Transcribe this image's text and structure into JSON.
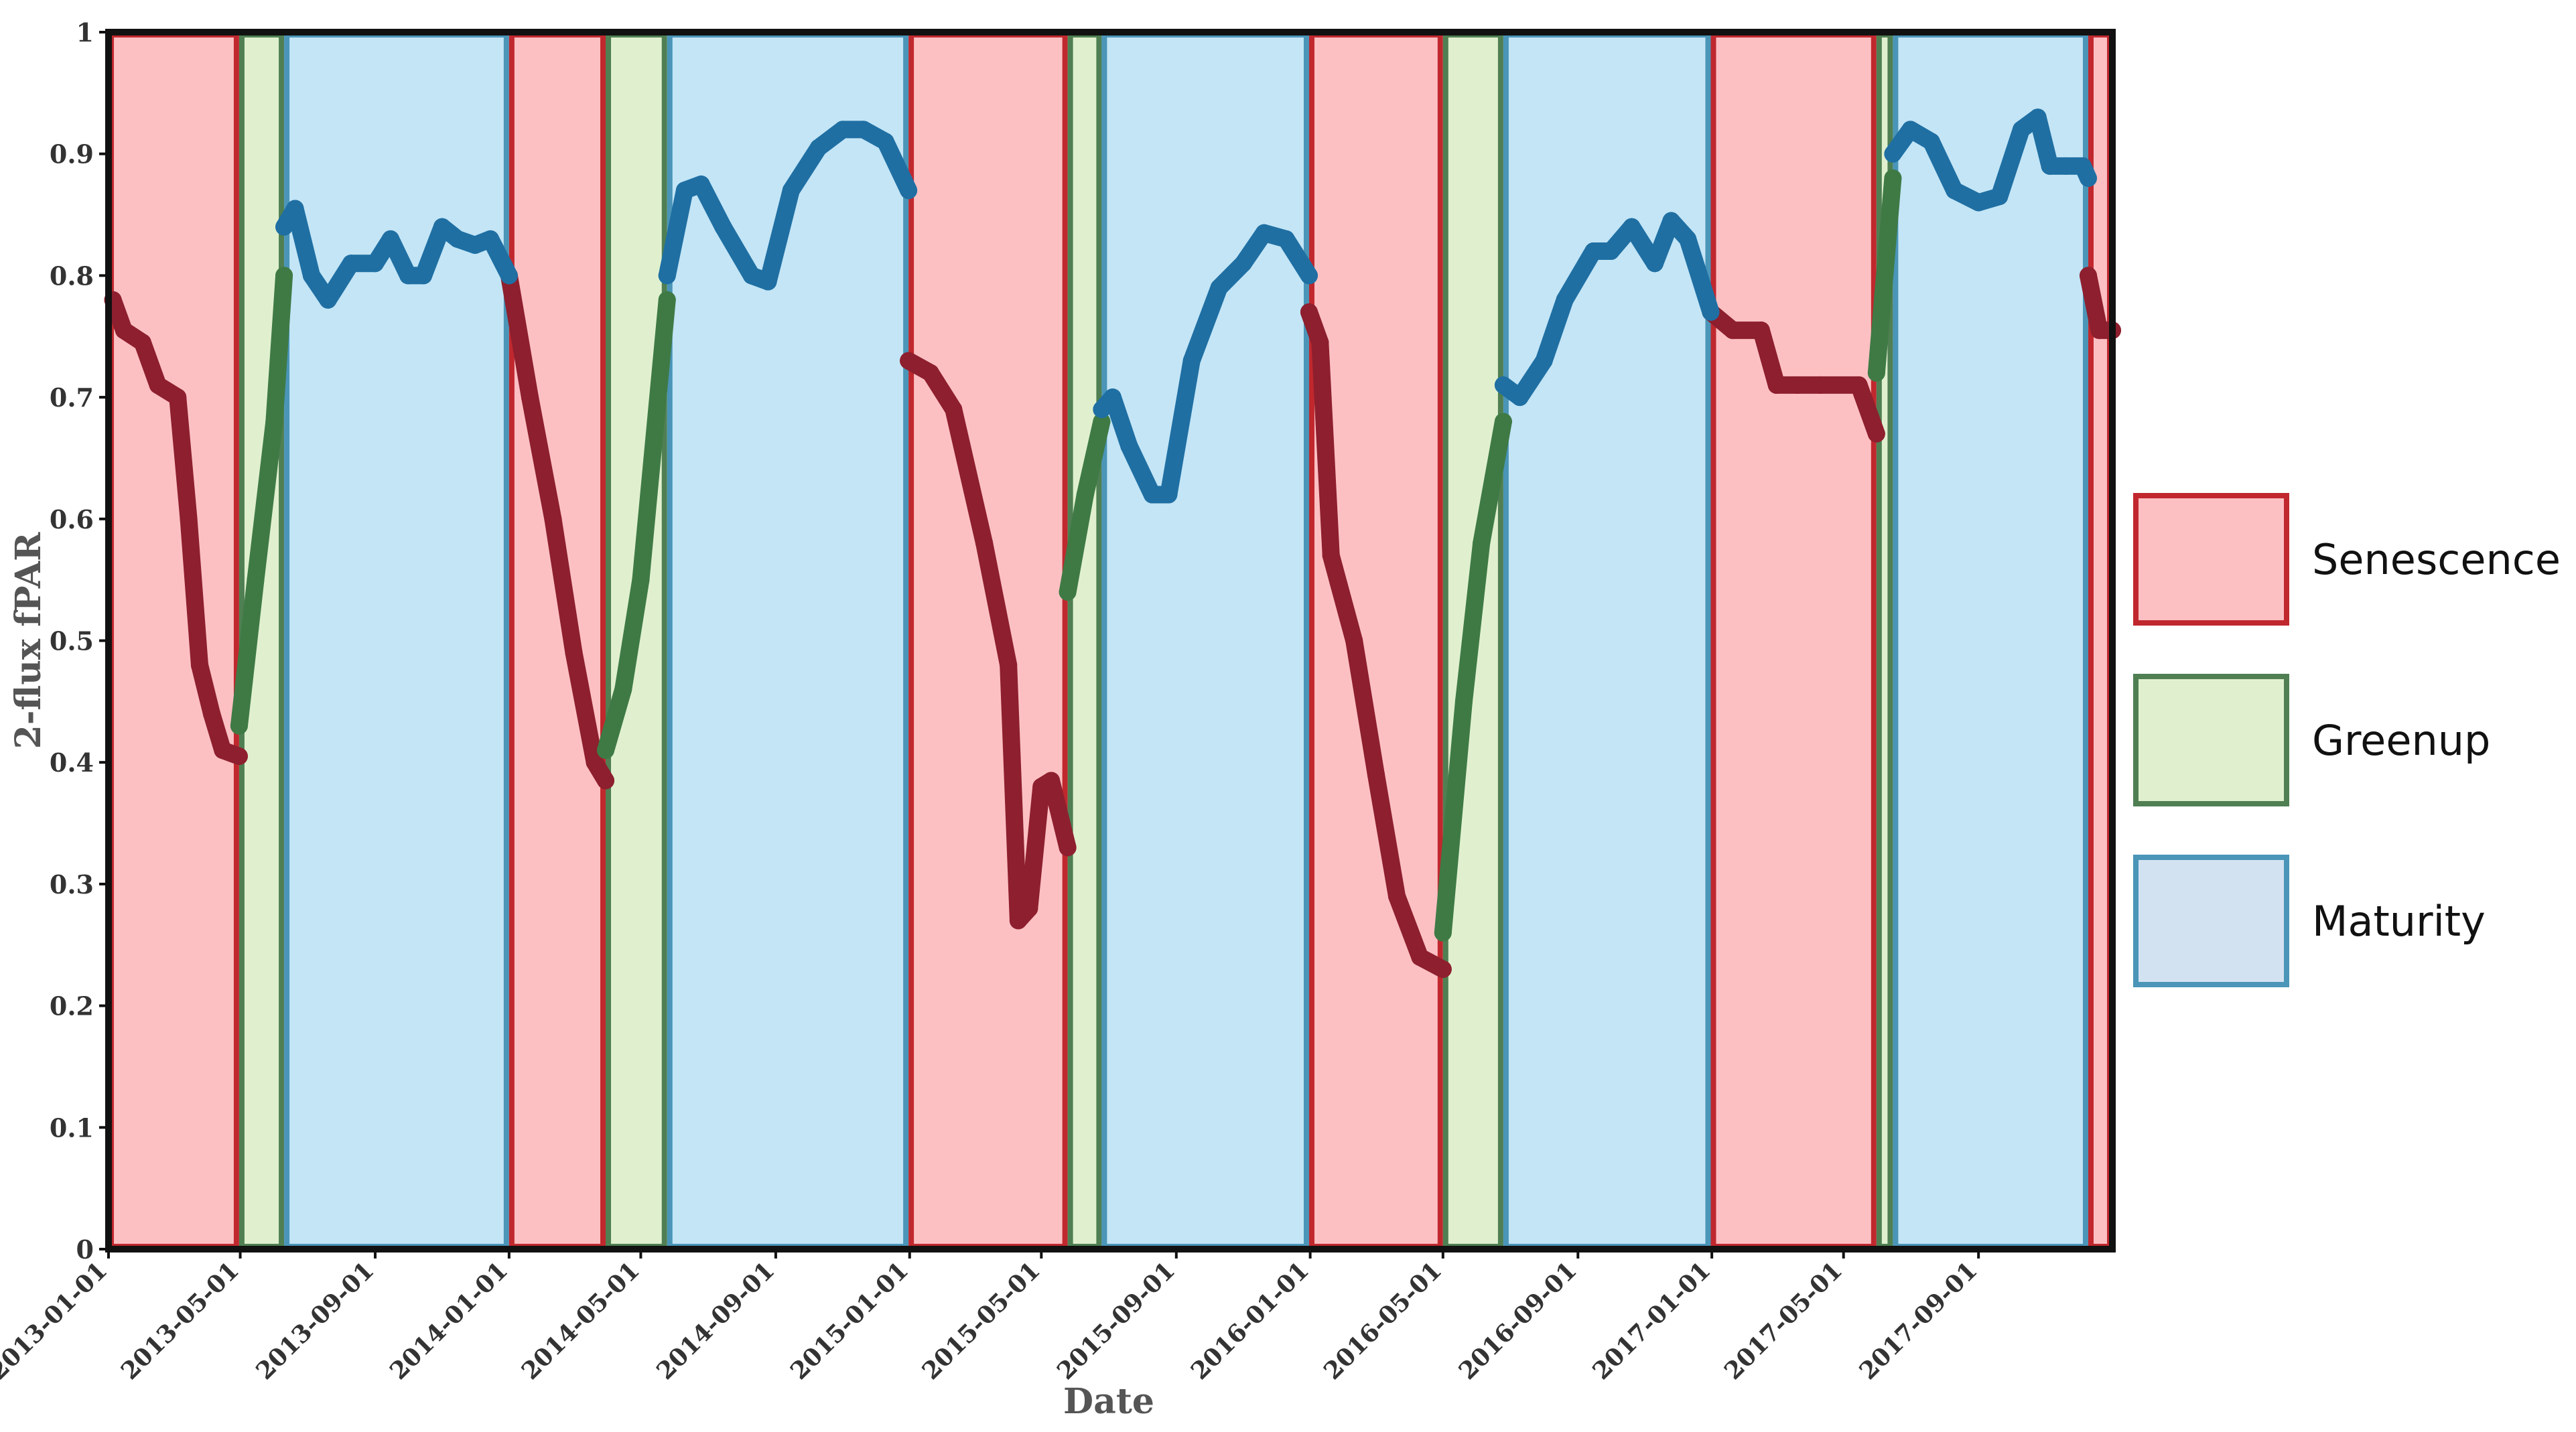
{
  "chart_data": {
    "type": "line",
    "title": "",
    "xlabel": "Date",
    "ylabel": "2-flux fPAR",
    "ylim": [
      0,
      1
    ],
    "xlim": [
      "2013-01-01",
      "2018-01-01"
    ],
    "y_ticks": [
      "0",
      "0.1",
      "0.2",
      "0.3",
      "0.4",
      "0.5",
      "0.6",
      "0.7",
      "0.8",
      "0.9",
      "1"
    ],
    "x_ticks": [
      "2013-01-01",
      "2013-05-01",
      "2013-09-01",
      "2014-01-01",
      "2014-05-01",
      "2014-09-01",
      "2015-01-01",
      "2015-05-01",
      "2015-09-01",
      "2016-01-01",
      "2016-05-01",
      "2016-09-01",
      "2017-01-01",
      "2017-05-01",
      "2017-09-01"
    ],
    "legend": [
      {
        "label": "Senescence",
        "fill": "#fcc0c3",
        "stroke": "#c0282e"
      },
      {
        "label": "Greenup",
        "fill": "#e0f0cf",
        "stroke": "#4f7f52"
      },
      {
        "label": "Maturity",
        "fill": "#d3e2f1",
        "stroke": "#4a95b8"
      }
    ],
    "phase_colors": {
      "senescence": {
        "fill": "#fcc0c3",
        "stroke": "#c0282e"
      },
      "greenup": {
        "fill": "#e0f0cf",
        "stroke": "#4f7f52"
      },
      "maturity": {
        "fill": "#c3e5f6",
        "stroke": "#4a95b8"
      }
    },
    "phases": [
      {
        "phase": "senescence",
        "start": "2013-01-01",
        "end": "2013-04-30"
      },
      {
        "phase": "greenup",
        "start": "2013-04-30",
        "end": "2013-06-10"
      },
      {
        "phase": "maturity",
        "start": "2013-06-10",
        "end": "2014-01-01"
      },
      {
        "phase": "senescence",
        "start": "2014-01-01",
        "end": "2014-03-30"
      },
      {
        "phase": "greenup",
        "start": "2014-03-30",
        "end": "2014-05-25"
      },
      {
        "phase": "maturity",
        "start": "2014-05-25",
        "end": "2014-12-31"
      },
      {
        "phase": "senescence",
        "start": "2014-12-31",
        "end": "2015-05-25"
      },
      {
        "phase": "greenup",
        "start": "2015-05-25",
        "end": "2015-06-25"
      },
      {
        "phase": "maturity",
        "start": "2015-06-25",
        "end": "2015-12-31"
      },
      {
        "phase": "senescence",
        "start": "2015-12-31",
        "end": "2016-05-01"
      },
      {
        "phase": "greenup",
        "start": "2016-05-01",
        "end": "2016-06-25"
      },
      {
        "phase": "maturity",
        "start": "2016-06-25",
        "end": "2016-12-31"
      },
      {
        "phase": "senescence",
        "start": "2016-12-31",
        "end": "2017-05-31"
      },
      {
        "phase": "greenup",
        "start": "2017-05-31",
        "end": "2017-06-15"
      },
      {
        "phase": "maturity",
        "start": "2017-06-15",
        "end": "2017-12-10"
      },
      {
        "phase": "senescence",
        "start": "2017-12-10",
        "end": "2018-01-01"
      }
    ],
    "series": [
      {
        "name": "Senescence",
        "color": "#8e1f2e",
        "points": [
          [
            "2013-01-05",
            0.78
          ],
          [
            "2013-01-15",
            0.755
          ],
          [
            "2013-02-01",
            0.745
          ],
          [
            "2013-02-15",
            0.71
          ],
          [
            "2013-03-05",
            0.7
          ],
          [
            "2013-03-15",
            0.6
          ],
          [
            "2013-03-25",
            0.48
          ],
          [
            "2013-04-05",
            0.44
          ],
          [
            "2013-04-15",
            0.41
          ],
          [
            "2013-04-30",
            0.405
          ],
          [
            "2014-01-01",
            0.8
          ],
          [
            "2014-01-20",
            0.7
          ],
          [
            "2014-02-10",
            0.6
          ],
          [
            "2014-03-01",
            0.49
          ],
          [
            "2014-03-20",
            0.4
          ],
          [
            "2014-03-30",
            0.385
          ],
          [
            "2014-12-31",
            0.73
          ],
          [
            "2015-01-20",
            0.72
          ],
          [
            "2015-02-10",
            0.69
          ],
          [
            "2015-03-10",
            0.58
          ],
          [
            "2015-04-01",
            0.48
          ],
          [
            "2015-04-10",
            0.27
          ],
          [
            "2015-04-20",
            0.28
          ],
          [
            "2015-05-01",
            0.38
          ],
          [
            "2015-05-10",
            0.385
          ],
          [
            "2015-05-25",
            0.33
          ],
          [
            "2015-12-31",
            0.77
          ],
          [
            "2016-01-10",
            0.745
          ],
          [
            "2016-01-20",
            0.57
          ],
          [
            "2016-02-10",
            0.5
          ],
          [
            "2016-03-01",
            0.39
          ],
          [
            "2016-03-20",
            0.29
          ],
          [
            "2016-04-10",
            0.24
          ],
          [
            "2016-05-01",
            0.23
          ],
          [
            "2016-12-31",
            0.77
          ],
          [
            "2017-01-20",
            0.755
          ],
          [
            "2017-02-15",
            0.755
          ],
          [
            "2017-03-01",
            0.71
          ],
          [
            "2017-03-20",
            0.71
          ],
          [
            "2017-04-10",
            0.71
          ],
          [
            "2017-05-15",
            0.71
          ],
          [
            "2017-05-31",
            0.67
          ],
          [
            "2017-12-10",
            0.8
          ],
          [
            "2017-12-20",
            0.755
          ],
          [
            "2018-01-01",
            0.755
          ]
        ]
      },
      {
        "name": "Greenup",
        "color": "#3f7a45",
        "points": [
          [
            "2013-04-30",
            0.43
          ],
          [
            "2013-05-15",
            0.55
          ],
          [
            "2013-06-01",
            0.68
          ],
          [
            "2013-06-10",
            0.8
          ],
          [
            "2014-03-30",
            0.41
          ],
          [
            "2014-04-15",
            0.46
          ],
          [
            "2014-05-01",
            0.55
          ],
          [
            "2014-05-25",
            0.78
          ],
          [
            "2015-05-25",
            0.54
          ],
          [
            "2015-06-10",
            0.62
          ],
          [
            "2015-06-25",
            0.68
          ],
          [
            "2016-05-01",
            0.26
          ],
          [
            "2016-05-20",
            0.45
          ],
          [
            "2016-06-05",
            0.58
          ],
          [
            "2016-06-25",
            0.68
          ],
          [
            "2017-05-31",
            0.72
          ],
          [
            "2017-06-15",
            0.88
          ]
        ]
      },
      {
        "name": "Maturity",
        "color": "#1f6fa3",
        "points": [
          [
            "2013-06-10",
            0.84
          ],
          [
            "2013-06-20",
            0.855
          ],
          [
            "2013-07-05",
            0.8
          ],
          [
            "2013-07-20",
            0.78
          ],
          [
            "2013-08-10",
            0.81
          ],
          [
            "2013-09-01",
            0.81
          ],
          [
            "2013-09-15",
            0.83
          ],
          [
            "2013-10-01",
            0.8
          ],
          [
            "2013-10-15",
            0.8
          ],
          [
            "2013-11-01",
            0.84
          ],
          [
            "2013-11-15",
            0.83
          ],
          [
            "2013-12-01",
            0.825
          ],
          [
            "2013-12-15",
            0.83
          ],
          [
            "2014-01-01",
            0.8
          ],
          [
            "2014-05-25",
            0.8
          ],
          [
            "2014-06-10",
            0.87
          ],
          [
            "2014-06-25",
            0.875
          ],
          [
            "2014-07-15",
            0.84
          ],
          [
            "2014-08-10",
            0.8
          ],
          [
            "2014-08-25",
            0.795
          ],
          [
            "2014-09-15",
            0.87
          ],
          [
            "2014-10-10",
            0.905
          ],
          [
            "2014-11-01",
            0.92
          ],
          [
            "2014-11-20",
            0.92
          ],
          [
            "2014-12-10",
            0.91
          ],
          [
            "2014-12-31",
            0.87
          ],
          [
            "2015-06-25",
            0.69
          ],
          [
            "2015-07-05",
            0.7
          ],
          [
            "2015-07-20",
            0.66
          ],
          [
            "2015-08-10",
            0.62
          ],
          [
            "2015-08-25",
            0.62
          ],
          [
            "2015-09-15",
            0.73
          ],
          [
            "2015-10-10",
            0.79
          ],
          [
            "2015-11-01",
            0.81
          ],
          [
            "2015-11-20",
            0.835
          ],
          [
            "2015-12-10",
            0.83
          ],
          [
            "2015-12-31",
            0.8
          ],
          [
            "2016-06-25",
            0.71
          ],
          [
            "2016-07-10",
            0.7
          ],
          [
            "2016-08-01",
            0.73
          ],
          [
            "2016-08-20",
            0.78
          ],
          [
            "2016-09-15",
            0.82
          ],
          [
            "2016-10-01",
            0.82
          ],
          [
            "2016-10-20",
            0.84
          ],
          [
            "2016-11-10",
            0.81
          ],
          [
            "2016-11-25",
            0.845
          ],
          [
            "2016-12-10",
            0.83
          ],
          [
            "2016-12-31",
            0.77
          ],
          [
            "2017-06-15",
            0.9
          ],
          [
            "2017-07-01",
            0.92
          ],
          [
            "2017-07-20",
            0.91
          ],
          [
            "2017-08-10",
            0.87
          ],
          [
            "2017-09-01",
            0.86
          ],
          [
            "2017-09-20",
            0.865
          ],
          [
            "2017-10-10",
            0.92
          ],
          [
            "2017-10-25",
            0.93
          ],
          [
            "2017-11-05",
            0.89
          ],
          [
            "2017-11-20",
            0.89
          ],
          [
            "2017-12-05",
            0.89
          ],
          [
            "2017-12-10",
            0.88
          ]
        ]
      }
    ]
  }
}
